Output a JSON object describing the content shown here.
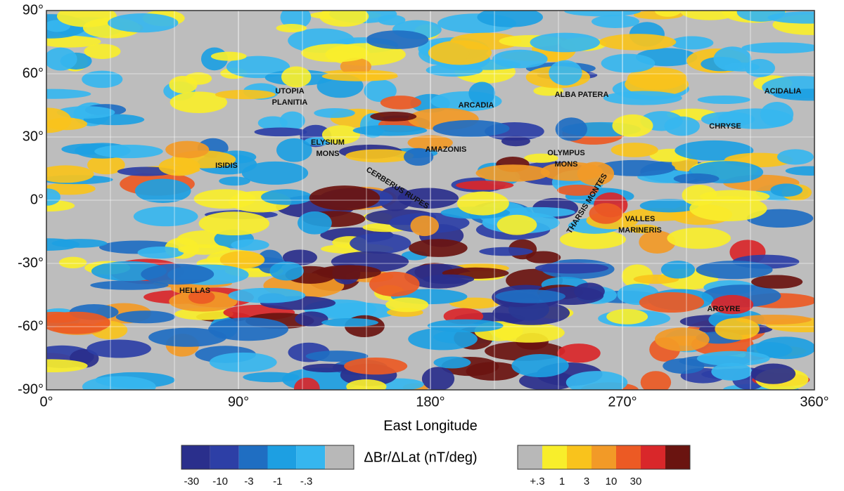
{
  "chart_data": {
    "type": "map",
    "xlabel": "East Longitude",
    "xlim": [
      0,
      360
    ],
    "ylim": [
      -90,
      90
    ],
    "xticks": [
      {
        "value": 0,
        "label": "0°"
      },
      {
        "value": 90,
        "label": "90°"
      },
      {
        "value": 180,
        "label": "180°"
      },
      {
        "value": 270,
        "label": "270°"
      },
      {
        "value": 360,
        "label": "360°"
      }
    ],
    "yticks": [
      {
        "value": 90,
        "label": "90°"
      },
      {
        "value": 60,
        "label": "60°"
      },
      {
        "value": 30,
        "label": "30°"
      },
      {
        "value": 0,
        "label": "0°"
      },
      {
        "value": -30,
        "label": "-30°"
      },
      {
        "value": -60,
        "label": "-60°"
      },
      {
        "value": -90,
        "label": "-90°"
      }
    ],
    "grid": true,
    "places": [
      {
        "lines": [
          "UTOPIA",
          "PLANITIA"
        ]
      },
      {
        "lines": [
          "ARCADIA"
        ]
      },
      {
        "lines": [
          "ALBA PATERA"
        ]
      },
      {
        "lines": [
          "ACIDALIA"
        ]
      },
      {
        "lines": [
          "CHRYSE"
        ]
      },
      {
        "lines": [
          "ELYSIUM",
          "MONS"
        ]
      },
      {
        "lines": [
          "AMAZONIS"
        ]
      },
      {
        "lines": [
          "OLYMPUS",
          "MONS"
        ]
      },
      {
        "lines": [
          "ISIDIS"
        ]
      },
      {
        "lines": [
          "CERBERUS RUPES"
        ]
      },
      {
        "lines": [
          "THARSIS MONTES"
        ]
      },
      {
        "lines": [
          "VALLES",
          "MARINERIS"
        ]
      },
      {
        "lines": [
          "HELLAS"
        ]
      },
      {
        "lines": [
          "ARGYRE"
        ]
      }
    ],
    "colorbar": {
      "title": "ΔBr/ΔLat (nT/deg)",
      "negative": {
        "colors": [
          "#2a2f8c",
          "#2d3fa6",
          "#1f6ec2",
          "#1d9fe2",
          "#36b6ef",
          "#b8b8b8"
        ],
        "ticks": [
          -30,
          -10,
          -3,
          -1,
          {
            "value": -0.3,
            "label": "-.3"
          }
        ]
      },
      "positive": {
        "colors": [
          "#b8b8b8",
          "#f8ee2b",
          "#f9c31c",
          "#f29a27",
          "#ec5a24",
          "#d9272a",
          "#6a1410"
        ],
        "ticks": [
          {
            "value": 0.3,
            "label": "+.3"
          },
          1,
          3,
          10,
          30
        ]
      }
    }
  }
}
